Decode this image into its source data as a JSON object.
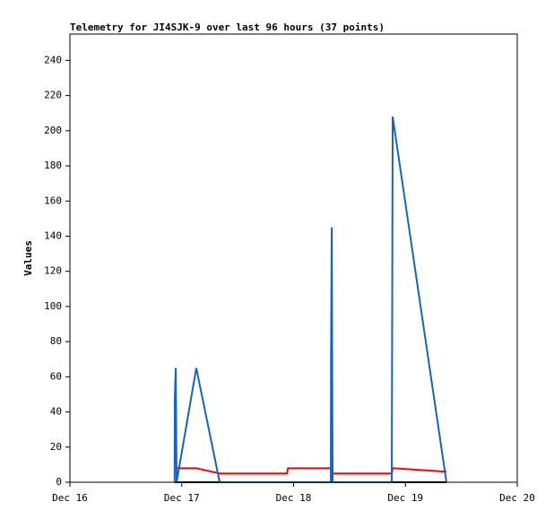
{
  "chart_data": {
    "type": "line",
    "title": "Telemetry for JI4SJK-9 over last 96 hours (37 points)",
    "y_label": "Values",
    "xlim": [
      16,
      20
    ],
    "xticks": [
      {
        "value": 16,
        "label": "Dec 16"
      },
      {
        "value": 17,
        "label": "Dec 17"
      },
      {
        "value": 18,
        "label": "Dec 18"
      },
      {
        "value": 19,
        "label": "Dec 19"
      },
      {
        "value": 20,
        "label": "Dec 20"
      }
    ],
    "ylim": [
      0,
      255
    ],
    "yticks": [
      0,
      20,
      40,
      60,
      80,
      100,
      120,
      140,
      160,
      180,
      200,
      220,
      240
    ],
    "series": [
      {
        "color": "#000000",
        "x": [
          16.938,
          19.367
        ],
        "values": [
          0,
          0
        ]
      },
      {
        "color": "#ff0000",
        "x": [
          16.954,
          17.13,
          17.339,
          17.94,
          17.95,
          18.333,
          18.349,
          18.878,
          18.886,
          19.367
        ],
        "values": [
          8,
          8,
          5,
          5,
          8,
          8,
          5,
          5,
          8,
          6
        ]
      },
      {
        "color": "#1565c0",
        "x": [
          16.936,
          16.938,
          16.946,
          16.954,
          17.13,
          17.339,
          18.333,
          18.335,
          18.341,
          18.349,
          18.878,
          18.886,
          19.367
        ],
        "values": [
          0,
          48,
          65,
          0,
          65,
          0,
          0,
          72,
          145,
          0,
          0,
          208,
          0
        ]
      }
    ]
  }
}
